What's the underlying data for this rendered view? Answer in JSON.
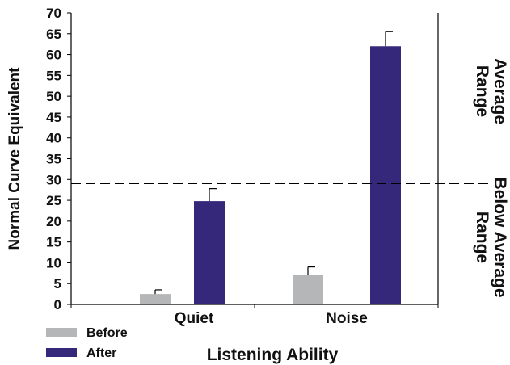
{
  "chart_data": {
    "type": "bar",
    "xlabel": "Listening Ability",
    "ylabel": "Normal Curve Equivalent",
    "ylim": [
      0,
      70
    ],
    "yticks": [
      0,
      5,
      10,
      15,
      20,
      25,
      30,
      35,
      40,
      45,
      50,
      55,
      60,
      65,
      70
    ],
    "categories": [
      "Quiet",
      "Noise"
    ],
    "series": [
      {
        "name": "Before",
        "values": [
          2.5,
          7
        ],
        "errors": [
          1,
          2
        ],
        "color": "#b4b6b8"
      },
      {
        "name": "After",
        "values": [
          24.8,
          62
        ],
        "errors": [
          3,
          3.5
        ],
        "color": "#35287a"
      }
    ],
    "reference_line": {
      "value": 29,
      "style": "dashed"
    },
    "region_labels": [
      {
        "text": "Average Range",
        "lines": [
          "Average",
          "Range"
        ],
        "region": "above"
      },
      {
        "text": "Below Average Range",
        "lines": [
          "Below Average",
          "Range"
        ],
        "region": "below"
      }
    ],
    "grid": false,
    "legend": "bottom-left"
  }
}
